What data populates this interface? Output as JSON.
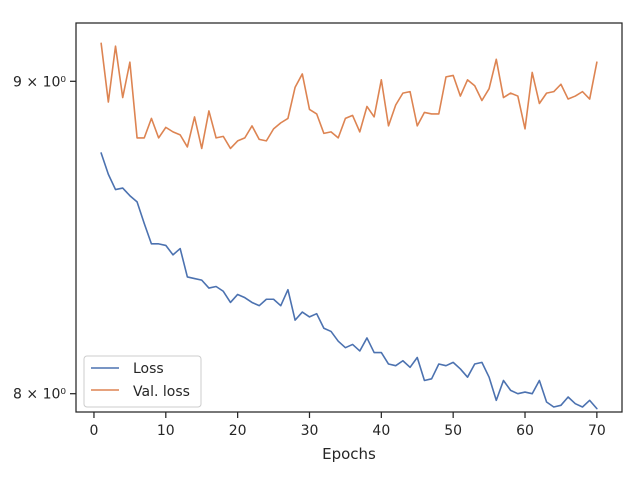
{
  "chart_data": {
    "type": "line",
    "title": "",
    "xlabel": "Epochs",
    "ylabel": "",
    "y_scale": "log",
    "xlim": [
      -2.5,
      73.5
    ],
    "ylim": [
      7.945,
      9.2
    ],
    "x_ticks": [
      0,
      10,
      20,
      30,
      40,
      50,
      60,
      70
    ],
    "y_ticks": [
      {
        "value": 8,
        "label": "8 × 10⁰"
      },
      {
        "value": 9,
        "label": "9 × 10⁰"
      }
    ],
    "grid": false,
    "legend_position": "lower-left",
    "x": [
      1,
      2,
      3,
      4,
      5,
      6,
      7,
      8,
      9,
      10,
      11,
      12,
      13,
      14,
      15,
      16,
      17,
      18,
      19,
      20,
      21,
      22,
      23,
      24,
      25,
      26,
      27,
      28,
      29,
      30,
      31,
      32,
      33,
      34,
      35,
      36,
      37,
      38,
      39,
      40,
      41,
      42,
      43,
      44,
      45,
      46,
      47,
      48,
      49,
      50,
      51,
      52,
      53,
      54,
      55,
      56,
      57,
      58,
      59,
      60,
      61,
      62,
      63,
      64,
      65,
      66,
      67,
      68,
      69,
      70
    ],
    "series": [
      {
        "name": "Loss",
        "color": "#4c72b0",
        "values": [
          8.76,
          8.69,
          8.64,
          8.645,
          8.62,
          8.6,
          8.53,
          8.465,
          8.465,
          8.46,
          8.43,
          8.45,
          8.36,
          8.355,
          8.35,
          8.325,
          8.33,
          8.315,
          8.28,
          8.305,
          8.295,
          8.28,
          8.27,
          8.29,
          8.29,
          8.27,
          8.32,
          8.225,
          8.25,
          8.235,
          8.245,
          8.2,
          8.19,
          8.16,
          8.14,
          8.15,
          8.13,
          8.17,
          8.125,
          8.125,
          8.09,
          8.085,
          8.1,
          8.08,
          8.11,
          8.04,
          8.045,
          8.09,
          8.085,
          8.095,
          8.075,
          8.05,
          8.09,
          8.095,
          8.05,
          7.98,
          8.04,
          8.01,
          8.0,
          8.005,
          8.0,
          8.04,
          7.975,
          7.96,
          7.965,
          7.99,
          7.97,
          7.96,
          7.98,
          7.955
        ]
      },
      {
        "name": "Val. loss",
        "color": "#dd8452",
        "values": [
          9.13,
          8.93,
          9.12,
          8.945,
          9.065,
          8.81,
          8.81,
          8.875,
          8.81,
          8.845,
          8.83,
          8.82,
          8.78,
          8.88,
          8.775,
          8.9,
          8.81,
          8.815,
          8.775,
          8.8,
          8.81,
          8.85,
          8.805,
          8.8,
          8.84,
          8.86,
          8.875,
          8.98,
          9.025,
          8.905,
          8.89,
          8.825,
          8.83,
          8.81,
          8.875,
          8.885,
          8.83,
          8.915,
          8.88,
          9.005,
          8.85,
          8.92,
          8.96,
          8.965,
          8.85,
          8.895,
          8.89,
          8.89,
          9.015,
          9.02,
          8.95,
          9.005,
          8.985,
          8.935,
          8.975,
          9.075,
          8.945,
          8.96,
          8.95,
          8.84,
          9.03,
          8.925,
          8.96,
          8.965,
          8.99,
          8.94,
          8.95,
          8.965,
          8.94,
          9.065
        ]
      }
    ]
  }
}
